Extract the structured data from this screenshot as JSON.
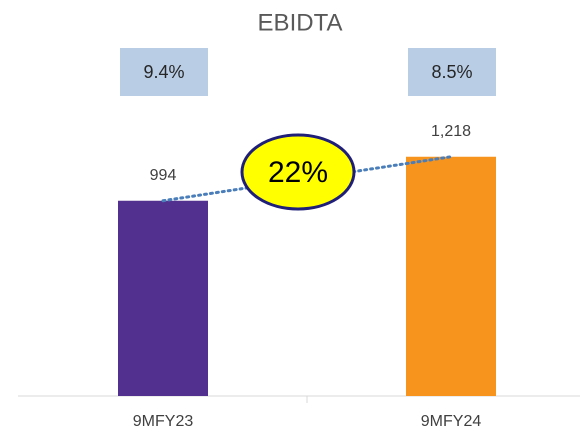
{
  "chart_data": {
    "type": "bar",
    "title": "EBIDTA",
    "categories": [
      "9MFY23",
      "9MFY24"
    ],
    "values": [
      994,
      1218
    ],
    "value_labels": [
      "994",
      "1,218"
    ],
    "colors": [
      "#52308f",
      "#f7941d"
    ],
    "ylim": [
      0,
      1400
    ],
    "margin_labels": [
      "9.4%",
      "8.5%"
    ],
    "growth_label": "22%"
  }
}
